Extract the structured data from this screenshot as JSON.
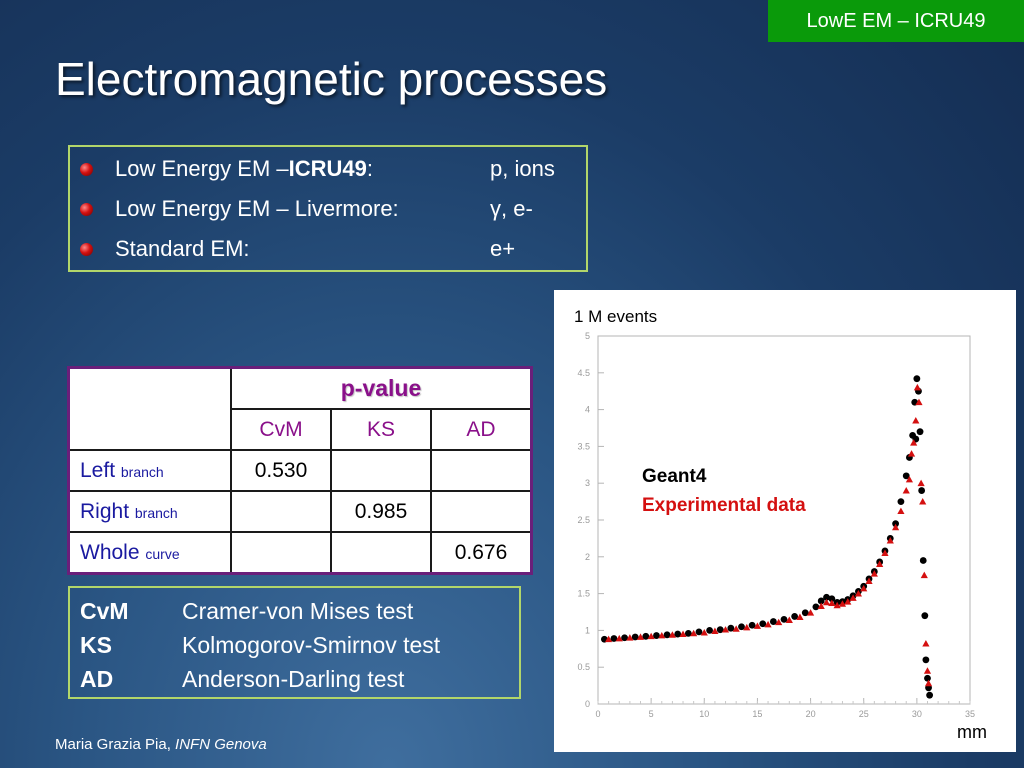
{
  "corner_tag": "LowE EM – ICRU49",
  "title": "Electromagnetic processes",
  "processes": [
    {
      "prefix": "Low Energy EM – ",
      "bold": "ICRU49",
      "suffix": ":",
      "particles": "p, ions"
    },
    {
      "prefix": "Low Energy EM – Livermore:",
      "bold": "",
      "suffix": "",
      "particles": "γ, e-"
    },
    {
      "prefix": "Standard EM:",
      "bold": "",
      "suffix": "",
      "particles": "e+"
    }
  ],
  "pvalue_table": {
    "header": "p-value",
    "columns": [
      "CvM",
      "KS",
      "AD"
    ],
    "rows": [
      {
        "label": "Left",
        "sub": "branch",
        "values": [
          "0.530",
          "",
          ""
        ]
      },
      {
        "label": "Right",
        "sub": "branch",
        "values": [
          "",
          "0.985",
          ""
        ]
      },
      {
        "label": "Whole",
        "sub": "curve",
        "values": [
          "",
          "",
          "0.676"
        ]
      }
    ]
  },
  "tests_legend": [
    {
      "abbr": "CvM",
      "name": "Cramer-von Mises test"
    },
    {
      "abbr": "KS",
      "name": "Kolmogorov-Smirnov test"
    },
    {
      "abbr": "AD",
      "name": "Anderson-Darling test"
    }
  ],
  "footer": {
    "author": "Maria Grazia Pia, ",
    "institution": "INFN Genova"
  },
  "colors": {
    "geant4": "#000000",
    "experimental": "#d41010",
    "tag_green": "#0a9a0a"
  },
  "chart_data": {
    "type": "scatter",
    "annotation": "1 M events",
    "xlabel": "mm",
    "ylabel": "",
    "xlim": [
      0,
      35
    ],
    "ylim": [
      0,
      5
    ],
    "xticks": [
      0,
      5,
      10,
      15,
      20,
      25,
      30,
      35
    ],
    "yticks": [
      0,
      0.5,
      1,
      1.5,
      2,
      2.5,
      3,
      3.5,
      4,
      4.5,
      5
    ],
    "grid": false,
    "legend_position": "right",
    "series": [
      {
        "name": "Geant4",
        "color": "#000000",
        "marker": "circle",
        "points": [
          [
            0.6,
            0.88
          ],
          [
            1.5,
            0.89
          ],
          [
            2.5,
            0.9
          ],
          [
            3.5,
            0.91
          ],
          [
            4.5,
            0.92
          ],
          [
            5.5,
            0.93
          ],
          [
            6.5,
            0.94
          ],
          [
            7.5,
            0.95
          ],
          [
            8.5,
            0.96
          ],
          [
            9.5,
            0.98
          ],
          [
            10.5,
            1.0
          ],
          [
            11.5,
            1.01
          ],
          [
            12.5,
            1.03
          ],
          [
            13.5,
            1.05
          ],
          [
            14.5,
            1.07
          ],
          [
            15.5,
            1.09
          ],
          [
            16.5,
            1.12
          ],
          [
            17.5,
            1.15
          ],
          [
            18.5,
            1.19
          ],
          [
            19.5,
            1.24
          ],
          [
            20.5,
            1.32
          ],
          [
            21.0,
            1.4
          ],
          [
            21.5,
            1.45
          ],
          [
            22.0,
            1.43
          ],
          [
            22.5,
            1.38
          ],
          [
            23.0,
            1.39
          ],
          [
            23.5,
            1.42
          ],
          [
            24.0,
            1.47
          ],
          [
            24.5,
            1.53
          ],
          [
            25.0,
            1.6
          ],
          [
            25.5,
            1.7
          ],
          [
            26.0,
            1.8
          ],
          [
            26.5,
            1.93
          ],
          [
            27.0,
            2.08
          ],
          [
            27.5,
            2.25
          ],
          [
            28.0,
            2.45
          ],
          [
            28.5,
            2.75
          ],
          [
            29.0,
            3.1
          ],
          [
            29.3,
            3.35
          ],
          [
            29.6,
            3.65
          ],
          [
            29.8,
            4.1
          ],
          [
            29.9,
            3.6
          ],
          [
            30.0,
            4.42
          ],
          [
            30.15,
            4.25
          ],
          [
            30.3,
            3.7
          ],
          [
            30.45,
            2.9
          ],
          [
            30.6,
            1.95
          ],
          [
            30.75,
            1.2
          ],
          [
            30.85,
            0.6
          ],
          [
            31.0,
            0.35
          ],
          [
            31.1,
            0.22
          ],
          [
            31.2,
            0.12
          ]
        ]
      },
      {
        "name": "Experimental data",
        "color": "#d41010",
        "marker": "triangle",
        "points": [
          [
            1.0,
            0.88
          ],
          [
            2.0,
            0.89
          ],
          [
            3.0,
            0.9
          ],
          [
            4.0,
            0.91
          ],
          [
            5.0,
            0.92
          ],
          [
            6.0,
            0.93
          ],
          [
            7.0,
            0.94
          ],
          [
            8.0,
            0.95
          ],
          [
            9.0,
            0.96
          ],
          [
            10.0,
            0.97
          ],
          [
            11.0,
            0.99
          ],
          [
            12.0,
            1.01
          ],
          [
            13.0,
            1.02
          ],
          [
            14.0,
            1.04
          ],
          [
            15.0,
            1.06
          ],
          [
            16.0,
            1.08
          ],
          [
            17.0,
            1.11
          ],
          [
            18.0,
            1.14
          ],
          [
            19.0,
            1.18
          ],
          [
            20.0,
            1.24
          ],
          [
            21.0,
            1.33
          ],
          [
            21.5,
            1.38
          ],
          [
            22.0,
            1.37
          ],
          [
            22.5,
            1.34
          ],
          [
            23.0,
            1.36
          ],
          [
            23.5,
            1.39
          ],
          [
            24.0,
            1.44
          ],
          [
            24.5,
            1.5
          ],
          [
            25.0,
            1.57
          ],
          [
            25.5,
            1.67
          ],
          [
            26.0,
            1.77
          ],
          [
            26.5,
            1.9
          ],
          [
            27.0,
            2.05
          ],
          [
            27.5,
            2.22
          ],
          [
            28.0,
            2.4
          ],
          [
            28.5,
            2.62
          ],
          [
            29.0,
            2.9
          ],
          [
            29.3,
            3.05
          ],
          [
            29.5,
            3.4
          ],
          [
            29.7,
            3.55
          ],
          [
            29.9,
            3.85
          ],
          [
            30.05,
            4.3
          ],
          [
            30.2,
            4.1
          ],
          [
            30.4,
            3.0
          ],
          [
            30.55,
            2.75
          ],
          [
            30.7,
            1.75
          ],
          [
            30.85,
            0.82
          ],
          [
            31.0,
            0.45
          ],
          [
            31.1,
            0.28
          ]
        ]
      }
    ]
  }
}
